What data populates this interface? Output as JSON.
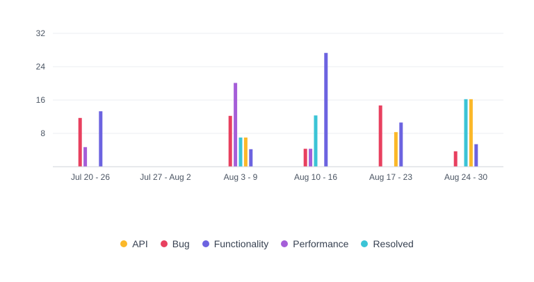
{
  "chart_data": {
    "type": "bar",
    "title": "",
    "xlabel": "",
    "ylabel": "",
    "categories": [
      "Jul 20 - 26",
      "Jul 27 - Aug 2",
      "Aug 3 - 9",
      "Aug 10 - 16",
      "Aug 17 - 23",
      "Aug 24 - 30"
    ],
    "ylim": [
      0,
      32
    ],
    "yticks": [
      "8",
      "16",
      "24",
      "32"
    ],
    "grid": true,
    "legend_position": "bottom",
    "series": [
      {
        "name": "Bug",
        "color": "#e8405f",
        "values": [
          11.7,
          0,
          12.2,
          4.3,
          14.7,
          3.7
        ]
      },
      {
        "name": "Performance",
        "color": "#a55ed8",
        "values": [
          4.7,
          0,
          20.1,
          4.3,
          0,
          0
        ]
      },
      {
        "name": "Resolved",
        "color": "#3bc4d6",
        "values": [
          0,
          0,
          7,
          12.3,
          0,
          16.2
        ]
      },
      {
        "name": "API",
        "color": "#fbb829",
        "values": [
          0,
          0,
          7,
          0,
          8.3,
          16.2
        ]
      },
      {
        "name": "Functionality",
        "color": "#6c63e0",
        "values": [
          13.3,
          0,
          4.2,
          27.3,
          10.6,
          5.4
        ]
      }
    ]
  },
  "legend": [
    {
      "label": "API",
      "color": "#fbb829"
    },
    {
      "label": "Bug",
      "color": "#e8405f"
    },
    {
      "label": "Functionality",
      "color": "#6c63e0"
    },
    {
      "label": "Performance",
      "color": "#a55ed8"
    },
    {
      "label": "Resolved",
      "color": "#3bc4d6"
    }
  ]
}
